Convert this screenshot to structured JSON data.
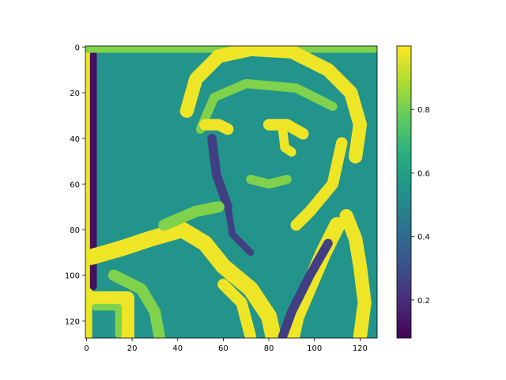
{
  "chart_data": {
    "type": "heatmap",
    "title": "",
    "xlabel": "",
    "ylabel": "",
    "shape": [
      128,
      128
    ],
    "xlim": [
      0,
      127
    ],
    "ylim": [
      127,
      0
    ],
    "xticks": [
      0,
      20,
      40,
      60,
      80,
      100,
      120
    ],
    "yticks": [
      0,
      20,
      40,
      60,
      80,
      100,
      120
    ],
    "colormap": "viridis",
    "colorbar": {
      "range": [
        0.08,
        1.0
      ],
      "ticks": [
        0.2,
        0.4,
        0.6,
        0.8
      ]
    },
    "background_value": 0.55,
    "content": "edge-response map of a person with glasses; high values along outlines of hair, face, collar and shoulders",
    "grid": false
  }
}
